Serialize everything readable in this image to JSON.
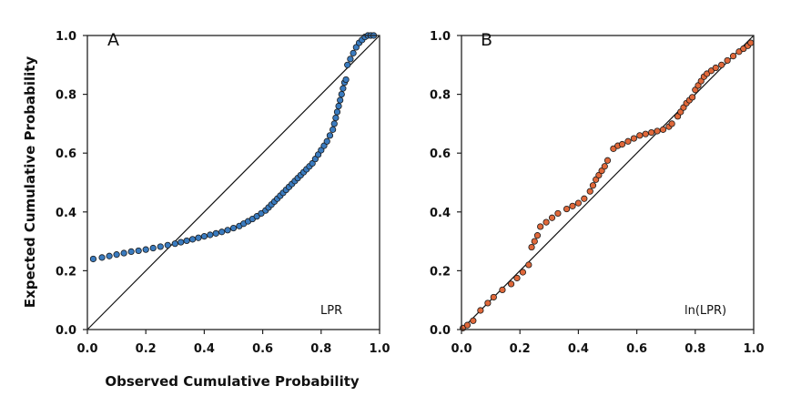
{
  "figure": {
    "ylabel": "Expected Cumulative Probability",
    "xlabel": "Observed Cumulative Probability"
  },
  "chart_data": [
    {
      "type": "scatter",
      "panel_label": "A",
      "variable_label": "LPR",
      "xlim": [
        0.0,
        1.0
      ],
      "ylim": [
        0.0,
        1.0
      ],
      "x_ticks": [
        "0.0",
        "0.2",
        "0.4",
        "0.6",
        "0.8",
        "1.0"
      ],
      "y_ticks": [
        "0.0",
        "0.2",
        "0.4",
        "0.6",
        "0.8",
        "1.0"
      ],
      "reference_line": [
        [
          0,
          0
        ],
        [
          1,
          1
        ]
      ],
      "marker_color": "#3a7bbf",
      "points": [
        [
          0.02,
          0.24
        ],
        [
          0.05,
          0.245
        ],
        [
          0.075,
          0.25
        ],
        [
          0.1,
          0.255
        ],
        [
          0.125,
          0.26
        ],
        [
          0.15,
          0.265
        ],
        [
          0.175,
          0.268
        ],
        [
          0.2,
          0.272
        ],
        [
          0.225,
          0.277
        ],
        [
          0.25,
          0.282
        ],
        [
          0.275,
          0.287
        ],
        [
          0.3,
          0.292
        ],
        [
          0.32,
          0.297
        ],
        [
          0.34,
          0.302
        ],
        [
          0.36,
          0.307
        ],
        [
          0.38,
          0.312
        ],
        [
          0.4,
          0.317
        ],
        [
          0.42,
          0.322
        ],
        [
          0.44,
          0.327
        ],
        [
          0.46,
          0.332
        ],
        [
          0.48,
          0.338
        ],
        [
          0.5,
          0.345
        ],
        [
          0.52,
          0.352
        ],
        [
          0.535,
          0.36
        ],
        [
          0.55,
          0.368
        ],
        [
          0.565,
          0.376
        ],
        [
          0.58,
          0.385
        ],
        [
          0.595,
          0.395
        ],
        [
          0.61,
          0.405
        ],
        [
          0.62,
          0.415
        ],
        [
          0.63,
          0.425
        ],
        [
          0.64,
          0.435
        ],
        [
          0.65,
          0.445
        ],
        [
          0.66,
          0.455
        ],
        [
          0.67,
          0.465
        ],
        [
          0.68,
          0.475
        ],
        [
          0.69,
          0.485
        ],
        [
          0.7,
          0.495
        ],
        [
          0.71,
          0.505
        ],
        [
          0.72,
          0.515
        ],
        [
          0.73,
          0.525
        ],
        [
          0.74,
          0.535
        ],
        [
          0.75,
          0.545
        ],
        [
          0.76,
          0.555
        ],
        [
          0.77,
          0.565
        ],
        [
          0.78,
          0.58
        ],
        [
          0.79,
          0.595
        ],
        [
          0.8,
          0.61
        ],
        [
          0.81,
          0.625
        ],
        [
          0.82,
          0.64
        ],
        [
          0.83,
          0.66
        ],
        [
          0.84,
          0.68
        ],
        [
          0.845,
          0.7
        ],
        [
          0.85,
          0.72
        ],
        [
          0.855,
          0.74
        ],
        [
          0.86,
          0.76
        ],
        [
          0.865,
          0.78
        ],
        [
          0.87,
          0.8
        ],
        [
          0.875,
          0.82
        ],
        [
          0.88,
          0.84
        ],
        [
          0.885,
          0.85
        ],
        [
          0.89,
          0.9
        ],
        [
          0.9,
          0.92
        ],
        [
          0.91,
          0.94
        ],
        [
          0.92,
          0.96
        ],
        [
          0.93,
          0.975
        ],
        [
          0.94,
          0.985
        ],
        [
          0.95,
          0.995
        ],
        [
          0.96,
          1.0
        ],
        [
          0.97,
          1.0
        ],
        [
          0.98,
          1.0
        ]
      ]
    },
    {
      "type": "scatter",
      "panel_label": "B",
      "variable_label": "ln(LPR)",
      "xlim": [
        0.0,
        1.0
      ],
      "ylim": [
        0.0,
        1.0
      ],
      "x_ticks": [
        "0.0",
        "0.2",
        "0.4",
        "0.6",
        "0.8",
        "1.0"
      ],
      "y_ticks": [
        "0.0",
        "0.2",
        "0.4",
        "0.6",
        "0.8",
        "1.0"
      ],
      "reference_line": [
        [
          0,
          0
        ],
        [
          1,
          1
        ]
      ],
      "marker_color": "#e0683a",
      "points": [
        [
          0.005,
          0.005
        ],
        [
          0.02,
          0.015
        ],
        [
          0.04,
          0.03
        ],
        [
          0.065,
          0.065
        ],
        [
          0.09,
          0.09
        ],
        [
          0.11,
          0.11
        ],
        [
          0.14,
          0.135
        ],
        [
          0.17,
          0.155
        ],
        [
          0.19,
          0.175
        ],
        [
          0.21,
          0.195
        ],
        [
          0.23,
          0.22
        ],
        [
          0.24,
          0.28
        ],
        [
          0.25,
          0.3
        ],
        [
          0.26,
          0.32
        ],
        [
          0.27,
          0.35
        ],
        [
          0.29,
          0.365
        ],
        [
          0.31,
          0.38
        ],
        [
          0.33,
          0.395
        ],
        [
          0.36,
          0.41
        ],
        [
          0.38,
          0.42
        ],
        [
          0.4,
          0.43
        ],
        [
          0.42,
          0.445
        ],
        [
          0.44,
          0.47
        ],
        [
          0.45,
          0.49
        ],
        [
          0.46,
          0.51
        ],
        [
          0.47,
          0.525
        ],
        [
          0.48,
          0.54
        ],
        [
          0.49,
          0.555
        ],
        [
          0.5,
          0.575
        ],
        [
          0.52,
          0.615
        ],
        [
          0.535,
          0.625
        ],
        [
          0.55,
          0.63
        ],
        [
          0.57,
          0.64
        ],
        [
          0.59,
          0.65
        ],
        [
          0.61,
          0.66
        ],
        [
          0.63,
          0.665
        ],
        [
          0.65,
          0.67
        ],
        [
          0.67,
          0.675
        ],
        [
          0.69,
          0.68
        ],
        [
          0.71,
          0.69
        ],
        [
          0.72,
          0.7
        ],
        [
          0.74,
          0.725
        ],
        [
          0.75,
          0.74
        ],
        [
          0.76,
          0.755
        ],
        [
          0.77,
          0.77
        ],
        [
          0.78,
          0.78
        ],
        [
          0.79,
          0.79
        ],
        [
          0.8,
          0.815
        ],
        [
          0.81,
          0.83
        ],
        [
          0.82,
          0.845
        ],
        [
          0.83,
          0.86
        ],
        [
          0.84,
          0.87
        ],
        [
          0.855,
          0.88
        ],
        [
          0.87,
          0.89
        ],
        [
          0.89,
          0.9
        ],
        [
          0.91,
          0.915
        ],
        [
          0.93,
          0.93
        ],
        [
          0.95,
          0.945
        ],
        [
          0.965,
          0.955
        ],
        [
          0.98,
          0.965
        ],
        [
          0.99,
          0.975
        ]
      ]
    }
  ]
}
